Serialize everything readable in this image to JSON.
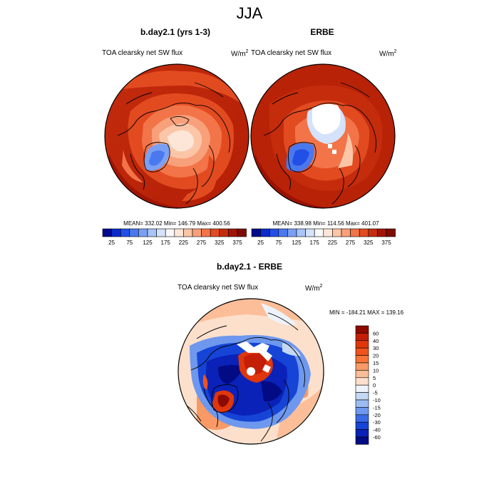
{
  "page": {
    "title": "JJA"
  },
  "chart_data": [
    {
      "type": "heatmap",
      "projection": "north-polar-stereographic",
      "title": "b.day2.1 (yrs 1-3)",
      "subtitle_left": "TOA clearsky net SW flux",
      "units_base": "W/m",
      "units_exp": "2",
      "stats_text": "MEAN= 332.02  Min= 146.79  Max= 400.56",
      "mean": 332.02,
      "min": 146.79,
      "max": 400.56,
      "colorbar": {
        "orientation": "horizontal",
        "levels": [
          25,
          50,
          75,
          100,
          125,
          150,
          175,
          200,
          225,
          250,
          275,
          300,
          325,
          350,
          375
        ],
        "labels": [
          "25",
          "75",
          "125",
          "175",
          "225",
          "275",
          "325",
          "375"
        ],
        "colors": [
          "#000a8c",
          "#0a2acd",
          "#2250e6",
          "#4a78ee",
          "#7aa0f4",
          "#a8c4f8",
          "#d4e2fb",
          "#f8f8f8",
          "#fde6d8",
          "#fbc6a8",
          "#f8a07a",
          "#f27448",
          "#e24a20",
          "#c42c0c",
          "#a21404",
          "#7e0c00"
        ]
      }
    },
    {
      "type": "heatmap",
      "projection": "north-polar-stereographic",
      "title": "ERBE",
      "subtitle_left": "TOA clearsky net SW flux",
      "units_base": "W/m",
      "units_exp": "2",
      "stats_text": "MEAN= 338.98  Min= 114.56  Max= 401.07",
      "mean": 338.98,
      "min": 114.56,
      "max": 401.07,
      "colorbar": {
        "orientation": "horizontal",
        "levels": [
          25,
          50,
          75,
          100,
          125,
          150,
          175,
          200,
          225,
          250,
          275,
          300,
          325,
          350,
          375
        ],
        "labels": [
          "25",
          "75",
          "125",
          "175",
          "225",
          "275",
          "325",
          "375"
        ],
        "colors": [
          "#000a8c",
          "#0a2acd",
          "#2250e6",
          "#4a78ee",
          "#7aa0f4",
          "#a8c4f8",
          "#d4e2fb",
          "#f8f8f8",
          "#fde6d8",
          "#fbc6a8",
          "#f8a07a",
          "#f27448",
          "#e24a20",
          "#c42c0c",
          "#a21404",
          "#7e0c00"
        ]
      }
    },
    {
      "type": "heatmap",
      "projection": "north-polar-stereographic",
      "title": "b.day2.1 - ERBE",
      "subtitle_left": "TOA clearsky net SW flux",
      "units_base": "W/m",
      "units_exp": "2",
      "stats_text": "MIN = -184.21 MAX = 139.16",
      "min": -184.21,
      "max": 139.16,
      "colorbar": {
        "orientation": "vertical",
        "levels": [
          60,
          40,
          30,
          20,
          15,
          10,
          5,
          0,
          -5,
          -10,
          -15,
          -20,
          -30,
          -40,
          -60
        ],
        "labels": [
          "60",
          "40",
          "30",
          "20",
          "15",
          "10",
          "5",
          "0",
          "-5",
          "-10",
          "-15",
          "-20",
          "-30",
          "-40",
          "-60"
        ],
        "colors": [
          "#8c0a00",
          "#c41e06",
          "#e0360c",
          "#f0541c",
          "#f67436",
          "#f99a66",
          "#fcbe98",
          "#fde0cc",
          "#eef2fa",
          "#c4d8f4",
          "#9cbcf2",
          "#6e98ee",
          "#3a6ae6",
          "#1644d6",
          "#0a22b8",
          "#020a84"
        ]
      }
    }
  ]
}
